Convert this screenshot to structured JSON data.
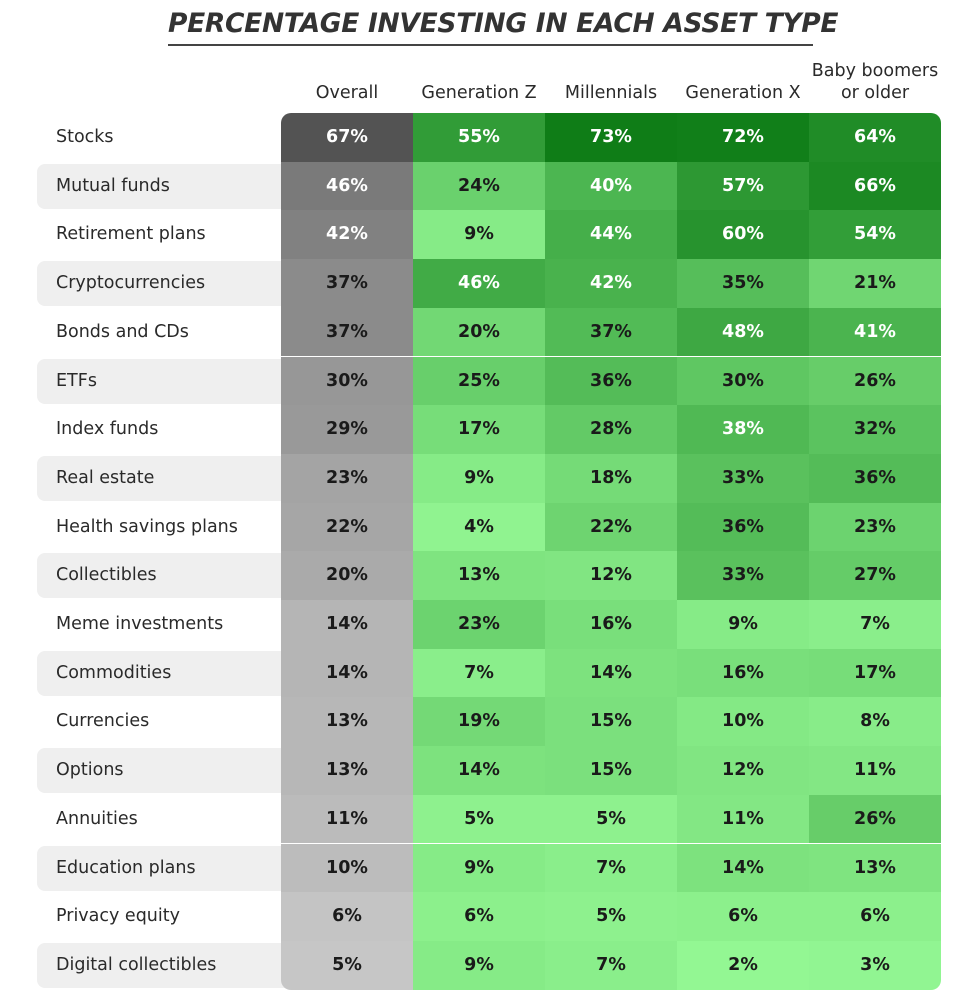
{
  "chart_data": {
    "type": "heatmap",
    "title": "PERCENTAGE INVESTING IN EACH ASSET TYPE",
    "columns": [
      "Overall",
      "Generation Z",
      "Millennials",
      "Generation X",
      "Baby boomers\nor older"
    ],
    "rows": [
      "Stocks",
      "Mutual funds",
      "Retirement plans",
      "Cryptocurrencies",
      "Bonds and CDs",
      "ETFs",
      "Index funds",
      "Real estate",
      "Health savings plans",
      "Collectibles",
      "Meme investments",
      "Commodities",
      "Currencies",
      "Options",
      "Annuities",
      "Education plans",
      "Privacy equity",
      "Digital collectibles"
    ],
    "values": [
      [
        67,
        55,
        73,
        72,
        64
      ],
      [
        46,
        24,
        40,
        57,
        66
      ],
      [
        42,
        9,
        44,
        60,
        54
      ],
      [
        37,
        46,
        42,
        35,
        21
      ],
      [
        37,
        20,
        37,
        48,
        41
      ],
      [
        30,
        25,
        36,
        30,
        26
      ],
      [
        29,
        17,
        28,
        38,
        32
      ],
      [
        23,
        9,
        18,
        33,
        36
      ],
      [
        22,
        4,
        22,
        36,
        23
      ],
      [
        20,
        13,
        12,
        33,
        27
      ],
      [
        14,
        23,
        16,
        9,
        7
      ],
      [
        14,
        7,
        14,
        16,
        17
      ],
      [
        13,
        19,
        15,
        10,
        8
      ],
      [
        13,
        14,
        15,
        12,
        11
      ],
      [
        11,
        5,
        5,
        11,
        26
      ],
      [
        10,
        9,
        7,
        14,
        13
      ],
      [
        6,
        6,
        5,
        6,
        6
      ],
      [
        5,
        9,
        7,
        2,
        3
      ]
    ],
    "value_suffix": "%",
    "colors": {
      "overall_dark": "#535353",
      "overall_light": "#cfcfcf",
      "green_dark": "#0f7d17",
      "green_light": "#97fa97",
      "row_stripe": "#efefef"
    }
  }
}
